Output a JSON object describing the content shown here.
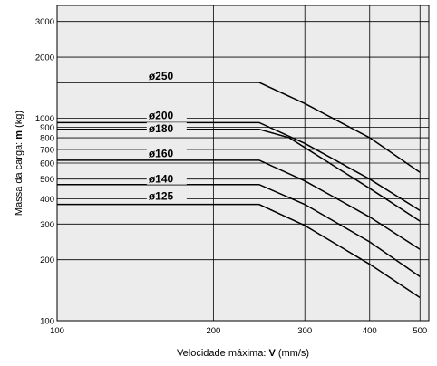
{
  "chart_data": {
    "type": "line",
    "title": "",
    "xlabel": "Velocidade máxima: ",
    "xlabel_bold": "V",
    "xlabel_unit": " (mm/s)",
    "ylabel": "Massa da carga: ",
    "ylabel_bold": "m",
    "ylabel_unit": " (kg)",
    "x_scale": "log",
    "y_scale": "log",
    "xlim": [
      100,
      520
    ],
    "ylim": [
      100,
      3600
    ],
    "x_ticks": [
      100,
      200,
      300,
      400,
      500
    ],
    "x_tick_labels": [
      "100",
      "200",
      "300",
      "400",
      "500"
    ],
    "y_ticks": [
      100,
      200,
      300,
      400,
      500,
      600,
      700,
      800,
      900,
      1000,
      2000,
      3000
    ],
    "y_tick_labels": [
      "100",
      "200",
      "300",
      "400",
      "500",
      "600",
      "700",
      "800",
      "900",
      "1000",
      "2000",
      "3000"
    ],
    "grid": true,
    "plot_background": "#ececec",
    "line_color": "#000000",
    "series": [
      {
        "name": "ø250",
        "x": [
          100,
          245,
          300,
          400,
          500
        ],
        "y": [
          1500,
          1500,
          1180,
          800,
          540
        ]
      },
      {
        "name": "ø200",
        "x": [
          100,
          245,
          300,
          400,
          500
        ],
        "y": [
          950,
          950,
          750,
          500,
          350
        ]
      },
      {
        "name": "ø180",
        "x": [
          100,
          245,
          280,
          400,
          500
        ],
        "y": [
          880,
          880,
          800,
          450,
          310
        ]
      },
      {
        "name": "ø160",
        "x": [
          100,
          245,
          300,
          400,
          500
        ],
        "y": [
          620,
          620,
          490,
          325,
          225
        ]
      },
      {
        "name": "ø140",
        "x": [
          100,
          245,
          300,
          400,
          500
        ],
        "y": [
          470,
          470,
          375,
          245,
          165
        ]
      },
      {
        "name": "ø125",
        "x": [
          100,
          245,
          300,
          400,
          500
        ],
        "y": [
          375,
          375,
          295,
          190,
          130
        ]
      }
    ]
  }
}
